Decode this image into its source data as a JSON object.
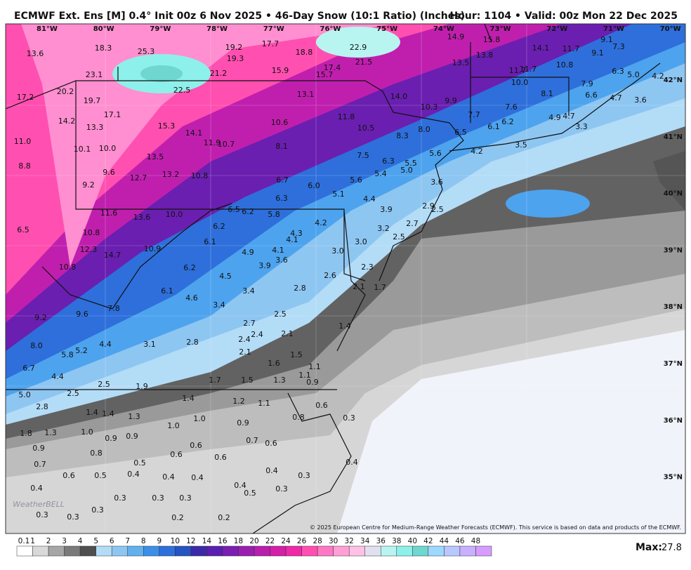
{
  "header": {
    "title": "ECMWF Ext. Ens [M] 0.4° Init 00z 6 Nov 2025 • 46-Day Snow (10:1 Ratio) (Inches)",
    "valid": "Hour: 1104 • Valid: 00z Mon 22 Dec 2025"
  },
  "longitudes": [
    "81°W",
    "80°W",
    "79°W",
    "78°W",
    "77°W",
    "76°W",
    "75°W",
    "74°W",
    "73°W",
    "72°W",
    "71°W",
    "70°W"
  ],
  "latitudes": [
    "42°N",
    "41°N",
    "40°N",
    "39°N",
    "38°N",
    "37°N",
    "36°N",
    "35°N"
  ],
  "map_labels": [
    "13.6",
    "18.3",
    "25.3",
    "19.2",
    "17.7",
    "18.8",
    "22.9",
    "14.9",
    "15.8",
    "14.1",
    "11.7",
    "9.1",
    "7.3",
    "9.1",
    "19.3",
    "21.5",
    "13.8",
    "13.5",
    "10.8",
    "23.1",
    "21.2",
    "15.9",
    "17.4",
    "15.7",
    "11.7",
    "11.7",
    "6.3",
    "5.0",
    "4.2",
    "20.2",
    "22.5",
    "13.1",
    "10.0",
    "7.9",
    "17.2",
    "19.7",
    "14.0",
    "9.9",
    "8.1",
    "6.6",
    "4.7",
    "3.6",
    "10.3",
    "7.6",
    "17.1",
    "7.7",
    "6.2",
    "4.9",
    "4.7",
    "14.2",
    "10.6",
    "11.8",
    "13.3",
    "15.3",
    "10.5",
    "8.0",
    "6.1",
    "3.3",
    "14.1",
    "8.3",
    "6.5",
    "11.0",
    "11.9",
    "10.7",
    "8.1",
    "3.5",
    "10.1",
    "10.0",
    "5.6",
    "4.2",
    "13.5",
    "7.5",
    "6.3",
    "5.5",
    "8.8",
    "9.6",
    "13.2",
    "10.8",
    "5.0",
    "5.4",
    "12.7",
    "6.7",
    "5.6",
    "3.6",
    "9.2",
    "6.0",
    "5.1",
    "6.3",
    "4.4",
    "2.9",
    "2.5",
    "6.5",
    "6.2",
    "3.9",
    "11.6",
    "10.0",
    "5.8",
    "13.6",
    "4.2",
    "2.7",
    "6.5",
    "6.2",
    "3.2",
    "10.8",
    "4.3",
    "4.1",
    "2.5",
    "6.1",
    "3.0",
    "12.3",
    "10.9",
    "4.9",
    "4.1",
    "3.0",
    "14.7",
    "3.6",
    "3.9",
    "6.2",
    "2.3",
    "10.8",
    "4.5",
    "2.6",
    "2.8",
    "2.1",
    "1.7",
    "6.1",
    "3.4",
    "4.6",
    "3.4",
    "7.8",
    "9.6",
    "2.5",
    "9.2",
    "2.7",
    "1.4",
    "2.4",
    "2.4",
    "2.1",
    "8.0",
    "4.4",
    "3.1",
    "2.8",
    "5.2",
    "5.8",
    "2.1",
    "1.5",
    "6.7",
    "1.6",
    "1.1",
    "4.4",
    "1.1",
    "1.3",
    "1.7",
    "1.5",
    "0.9",
    "2.5",
    "1.9",
    "2.5",
    "5.0",
    "1.4",
    "1.2",
    "1.1",
    "0.6",
    "2.8",
    "1.4",
    "1.4",
    "1.3",
    "0.8",
    "0.3",
    "1.0",
    "0.9",
    "1.0",
    "1.8",
    "1.3",
    "1.0",
    "0.9",
    "0.9",
    "0.7",
    "0.6",
    "0.9",
    "0.6",
    "0.8",
    "0.6",
    "0.6",
    "0.5",
    "0.4",
    "0.7",
    "0.4",
    "0.4",
    "0.3",
    "0.6",
    "0.5",
    "0.4",
    "0.4",
    "0.4",
    "0.4",
    "0.5",
    "0.3",
    "0.3",
    "0.3",
    "0.3",
    "0.3",
    "0.3",
    "0.3",
    "0.2",
    "0.2"
  ],
  "copyright": "© 2025 European Centre for Medium-Range Weather Forecasts (ECMWF). This service is based on data and products of the ECMWF.",
  "logo": "WeatherBELL",
  "colorbar": [
    "0.1",
    "1",
    "2",
    "3",
    "4",
    "5",
    "6",
    "7",
    "8",
    "9",
    "10",
    "12",
    "14",
    "16",
    "18",
    "20",
    "22",
    "24",
    "26",
    "28",
    "30",
    "32",
    "34",
    "36",
    "38",
    "40",
    "42",
    "44",
    "46",
    "48"
  ],
  "max": {
    "label": "Max:",
    "value": "27.8"
  }
}
